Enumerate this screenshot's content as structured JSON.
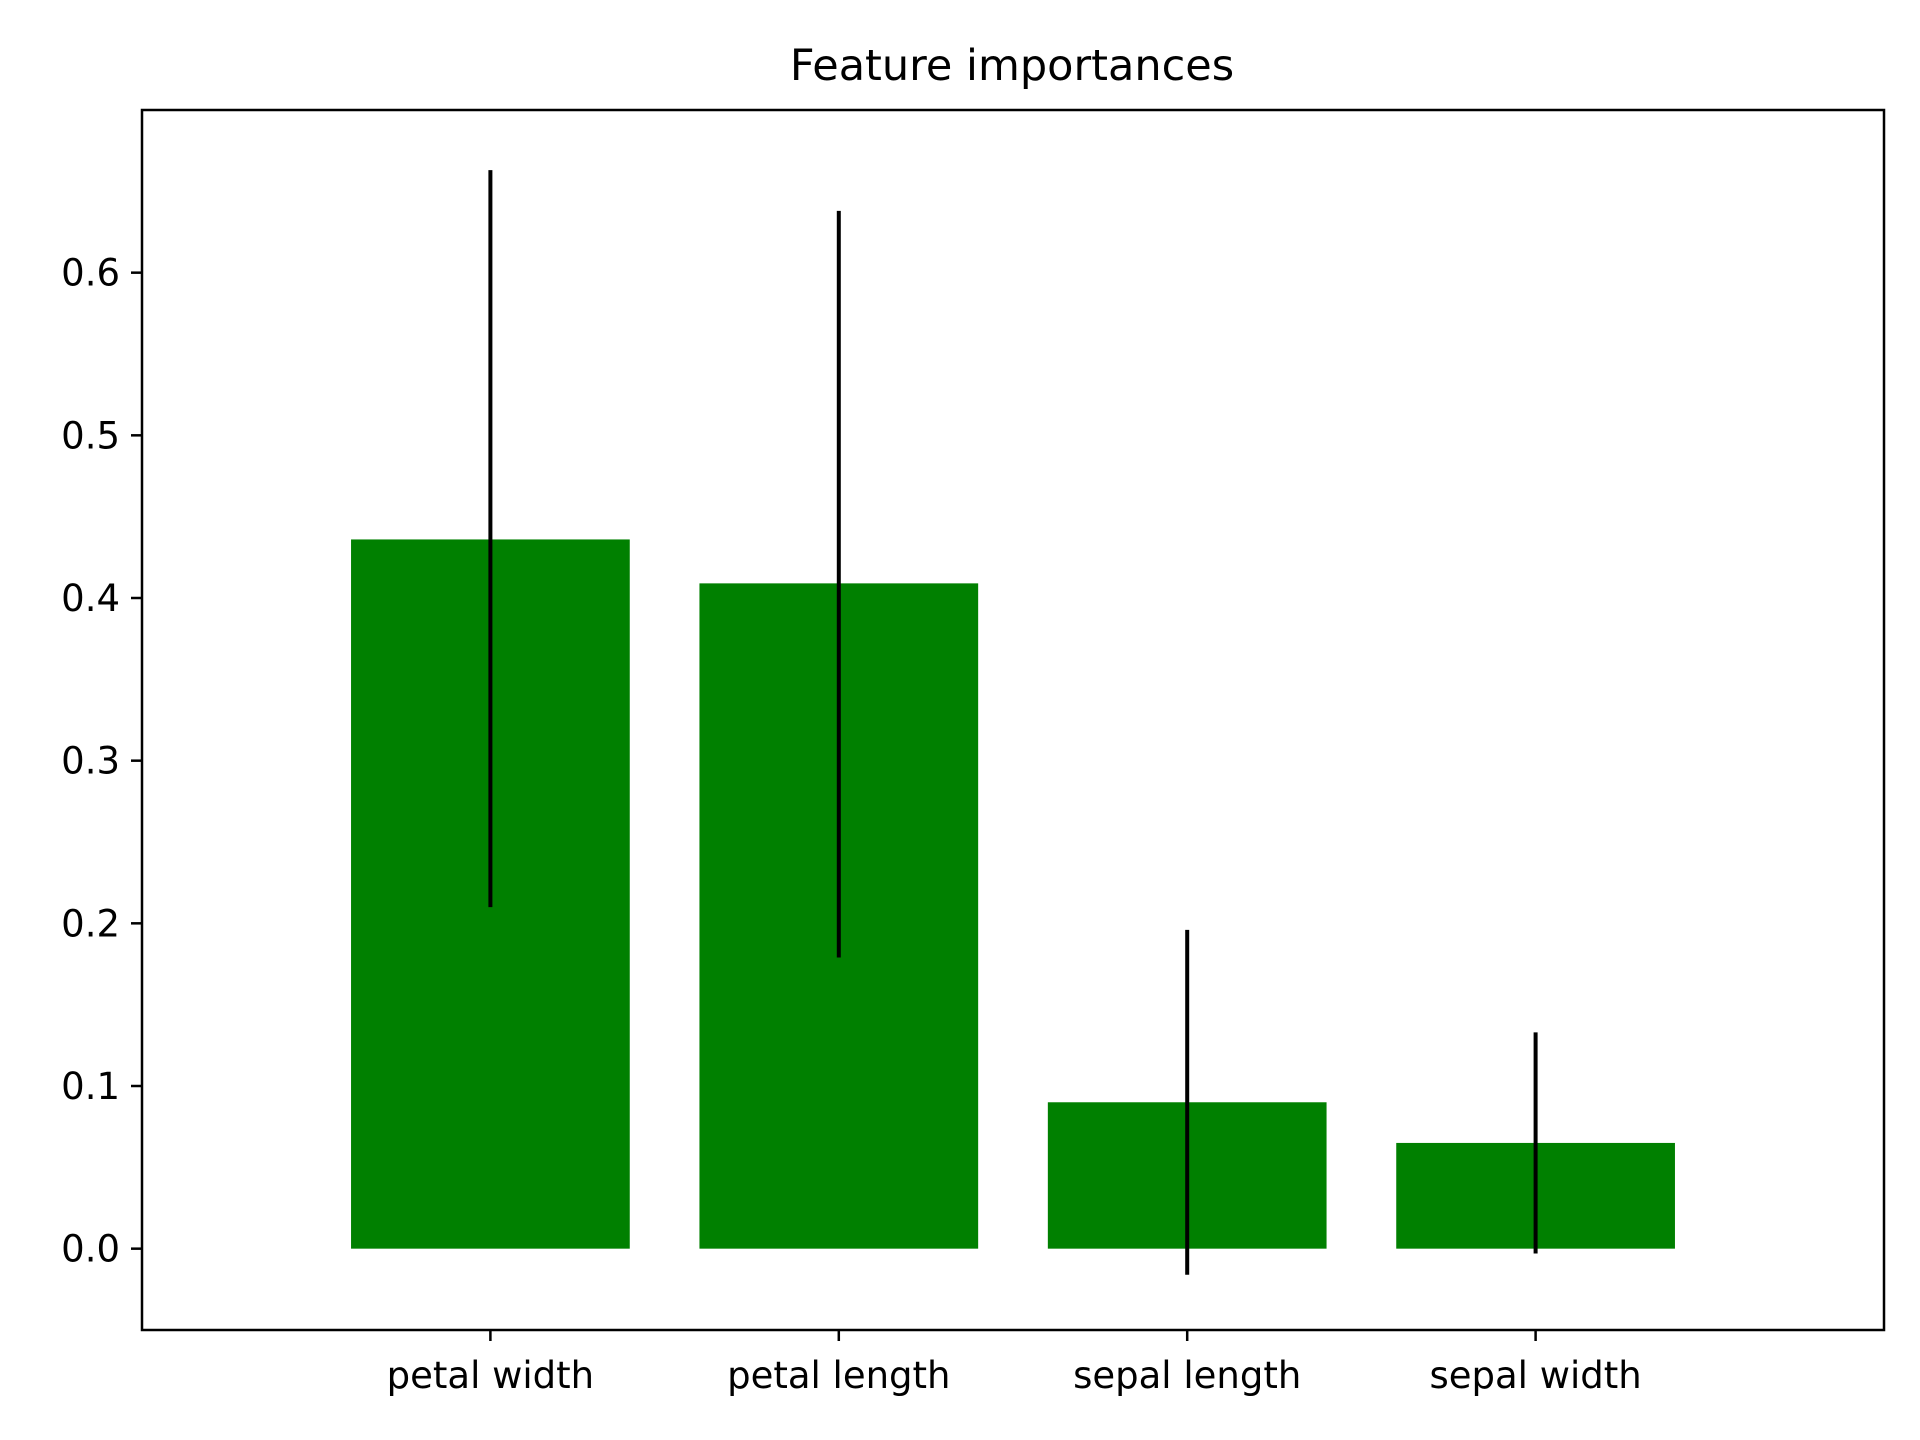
{
  "chart_data": {
    "type": "bar",
    "title": "Feature importances",
    "xlabel": "",
    "ylabel": "",
    "categories": [
      "petal width",
      "petal length",
      "sepal length",
      "sepal width"
    ],
    "values": [
      0.436,
      0.409,
      0.09,
      0.065
    ],
    "error_low": [
      0.21,
      0.179,
      -0.016,
      -0.003
    ],
    "error_high": [
      0.663,
      0.638,
      0.196,
      0.133
    ],
    "ylim": [
      -0.05,
      0.7
    ],
    "yticks": [
      0.0,
      0.1,
      0.2,
      0.3,
      0.4,
      0.5,
      0.6
    ],
    "ytick_labels": [
      "0.0",
      "0.1",
      "0.2",
      "0.3",
      "0.4",
      "0.5",
      "0.6"
    ],
    "grid": false,
    "legend": "none",
    "bar_color": "#008000",
    "error_color": "#000000"
  }
}
